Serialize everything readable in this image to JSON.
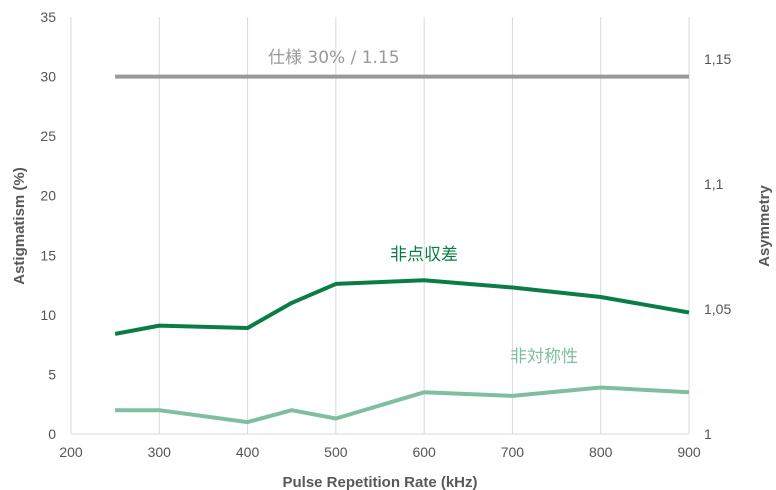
{
  "chart_data": {
    "type": "line",
    "xlabel": "Pulse Repetition Rate (kHz)",
    "ylabel": "Astigmatism (%)",
    "y2label": "Asymmetry",
    "xlim": [
      200,
      900
    ],
    "ylim": [
      0,
      35
    ],
    "y2lim": [
      1,
      1.1667
    ],
    "x_ticks": [
      "200",
      "300",
      "400",
      "500",
      "600",
      "700",
      "800",
      "900"
    ],
    "y_ticks": [
      "0",
      "5",
      "10",
      "15",
      "20",
      "25",
      "30",
      "35"
    ],
    "y2_ticks": [
      {
        "value": 1,
        "label": "1"
      },
      {
        "value": 1.05,
        "label": "1,05"
      },
      {
        "value": 1.1,
        "label": "1,1"
      },
      {
        "value": 1.15,
        "label": "1,15"
      }
    ],
    "grid": "vertical",
    "series": [
      {
        "name": "仕様 30% / 1.15",
        "axis": "left",
        "color": "#999999",
        "x": [
          250,
          900
        ],
        "values": [
          30,
          30
        ]
      },
      {
        "name": "非点収差",
        "axis": "left",
        "color": "#0a7d47",
        "x": [
          250,
          300,
          400,
          450,
          500,
          600,
          700,
          800,
          900
        ],
        "values": [
          8.4,
          9.1,
          8.9,
          11.0,
          12.6,
          12.9,
          12.3,
          11.5,
          10.2
        ]
      },
      {
        "name": "非対称性",
        "axis": "left",
        "color": "#7fbf9f",
        "x": [
          250,
          300,
          400,
          450,
          500,
          600,
          700,
          800,
          900
        ],
        "values": [
          2.0,
          2.0,
          1.0,
          2.0,
          1.3,
          3.5,
          3.2,
          3.9,
          3.5
        ]
      }
    ]
  }
}
